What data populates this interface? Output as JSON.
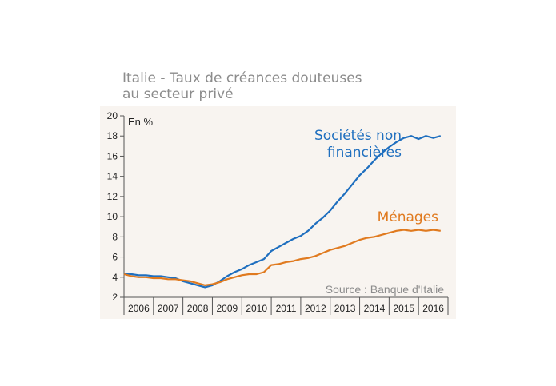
{
  "header": {
    "title_line1": "Italie - Taux de créances douteuses",
    "title_line2": "au secteur privé"
  },
  "colors": {
    "societes": "#1f6fbf",
    "menages": "#e07a1f",
    "panel_bg": "#f8f4f0"
  },
  "chart_data": {
    "type": "line",
    "title": "Italie - Taux de créances douteuses au secteur privé",
    "ylabel": "En %",
    "xlabel": "",
    "ylim": [
      2,
      20
    ],
    "yticks": [
      2,
      4,
      6,
      8,
      10,
      12,
      14,
      16,
      18,
      20
    ],
    "categories": [
      "2006",
      "2007",
      "2008",
      "2009",
      "2010",
      "2011",
      "2012",
      "2013",
      "2014",
      "2015",
      "2016"
    ],
    "xlim": [
      2006,
      2017
    ],
    "grid": false,
    "source": "Source : Banque d'Italie",
    "series": [
      {
        "name": "Sociétés non financières",
        "label_lines": [
          "Sociétés non",
          "financières"
        ],
        "color": "#1f6fbf",
        "x": [
          2006.0,
          2006.25,
          2006.5,
          2006.75,
          2007.0,
          2007.25,
          2007.5,
          2007.75,
          2008.0,
          2008.25,
          2008.5,
          2008.75,
          2009.0,
          2009.25,
          2009.5,
          2009.75,
          2010.0,
          2010.25,
          2010.5,
          2010.75,
          2011.0,
          2011.25,
          2011.5,
          2011.75,
          2012.0,
          2012.25,
          2012.5,
          2012.75,
          2013.0,
          2013.25,
          2013.5,
          2013.75,
          2014.0,
          2014.25,
          2014.5,
          2014.75,
          2015.0,
          2015.25,
          2015.5,
          2015.75,
          2016.0,
          2016.25,
          2016.5,
          2016.75
        ],
        "values": [
          4.3,
          4.3,
          4.2,
          4.2,
          4.1,
          4.1,
          4.0,
          3.9,
          3.6,
          3.4,
          3.2,
          3.0,
          3.2,
          3.6,
          4.1,
          4.5,
          4.8,
          5.2,
          5.5,
          5.8,
          6.6,
          7.0,
          7.4,
          7.8,
          8.1,
          8.6,
          9.3,
          9.9,
          10.6,
          11.5,
          12.3,
          13.2,
          14.1,
          14.8,
          15.6,
          16.3,
          16.9,
          17.4,
          17.8,
          18.0,
          17.7,
          18.0,
          17.8,
          18.0
        ]
      },
      {
        "name": "Ménages",
        "label_lines": [
          "Ménages"
        ],
        "color": "#e07a1f",
        "x": [
          2006.0,
          2006.25,
          2006.5,
          2006.75,
          2007.0,
          2007.25,
          2007.5,
          2007.75,
          2008.0,
          2008.25,
          2008.5,
          2008.75,
          2009.0,
          2009.25,
          2009.5,
          2009.75,
          2010.0,
          2010.25,
          2010.5,
          2010.75,
          2011.0,
          2011.25,
          2011.5,
          2011.75,
          2012.0,
          2012.25,
          2012.5,
          2012.75,
          2013.0,
          2013.25,
          2013.5,
          2013.75,
          2014.0,
          2014.25,
          2014.5,
          2014.75,
          2015.0,
          2015.25,
          2015.5,
          2015.75,
          2016.0,
          2016.25,
          2016.5,
          2016.75
        ],
        "values": [
          4.3,
          4.1,
          4.0,
          4.0,
          3.9,
          3.9,
          3.8,
          3.8,
          3.7,
          3.6,
          3.4,
          3.2,
          3.3,
          3.5,
          3.8,
          4.0,
          4.2,
          4.3,
          4.3,
          4.5,
          5.2,
          5.3,
          5.5,
          5.6,
          5.8,
          5.9,
          6.1,
          6.4,
          6.7,
          6.9,
          7.1,
          7.4,
          7.7,
          7.9,
          8.0,
          8.2,
          8.4,
          8.6,
          8.7,
          8.6,
          8.7,
          8.6,
          8.7,
          8.6
        ]
      }
    ]
  }
}
